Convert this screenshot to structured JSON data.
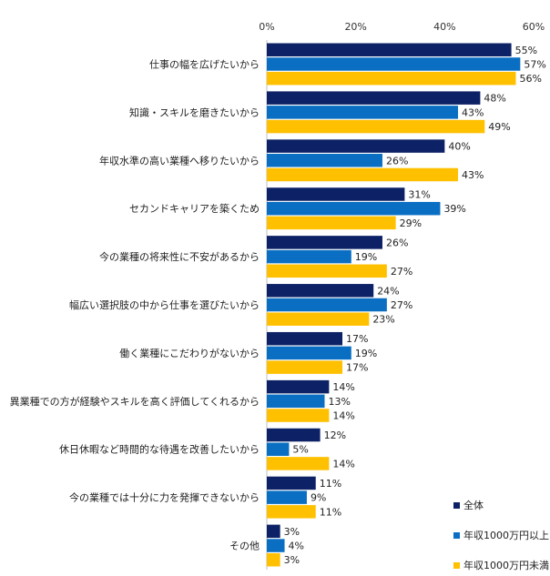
{
  "chart_data": {
    "type": "bar",
    "orientation": "horizontal",
    "categories": [
      "仕事の幅を広げたいから",
      "知識・スキルを磨きたいから",
      "年収水準の高い業種へ移りたいから",
      "セカンドキャリアを築くため",
      "今の業種の将来性に不安があるから",
      "幅広い選択肢の中から仕事を選びたいから",
      "働く業種にこだわりがないから",
      "異業種での方が経験やスキルを高く評価してくれるから",
      "休日休暇など時間的な待遇を改善したいから",
      "今の業種では十分に力を発揮できないから",
      "その他"
    ],
    "series": [
      {
        "name": "全体",
        "color": "#0d2266",
        "values": [
          55,
          48,
          40,
          31,
          26,
          24,
          17,
          14,
          12,
          11,
          3
        ]
      },
      {
        "name": "年収1000万円以上",
        "color": "#0a6fc2",
        "values": [
          57,
          43,
          26,
          39,
          19,
          27,
          19,
          13,
          5,
          9,
          4
        ]
      },
      {
        "name": "年収1000万円未満",
        "color": "#ffc000",
        "values": [
          56,
          49,
          43,
          29,
          27,
          23,
          17,
          14,
          14,
          11,
          3
        ]
      }
    ],
    "xlim": [
      0,
      60
    ],
    "xticks": [
      0,
      20,
      40,
      60
    ],
    "tick_suffix": "%",
    "value_suffix": "%",
    "grid": false,
    "legend_position": "bottom-right"
  }
}
